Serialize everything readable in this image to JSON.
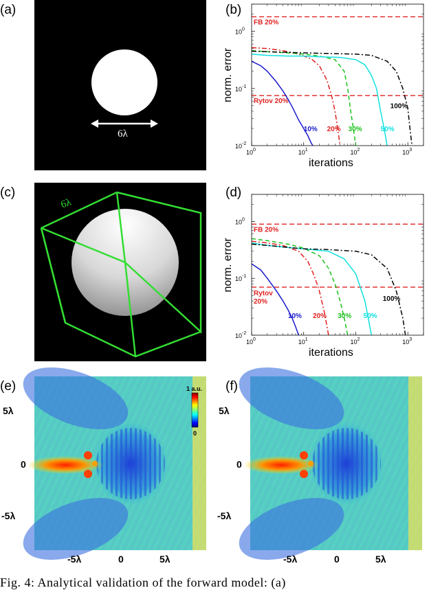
{
  "panels": {
    "a": {
      "label": "(a)",
      "dimension": "6λ"
    },
    "b": {
      "label": "(b)"
    },
    "c": {
      "label": "(c)",
      "dimension": "6λ"
    },
    "d": {
      "label": "(d)"
    },
    "e": {
      "label": "(e)",
      "colorbar_top": "1 a.u.",
      "colorbar_bottom": "0",
      "xticks": [
        "-5λ",
        "0",
        "5λ"
      ],
      "yticks": [
        "5λ",
        "0",
        "-5λ"
      ]
    },
    "f": {
      "label": "(f)",
      "xticks": [
        "-5λ",
        "0",
        "5λ"
      ],
      "yticks": [
        "5λ",
        "0",
        "-5λ"
      ]
    }
  },
  "colors": {
    "blue": "#1a1acc",
    "red": "#e02020",
    "green": "#18c018",
    "cyan": "#10e0e0",
    "black": "#000000",
    "cube": "#33dd33"
  },
  "chart_data": [
    {
      "id": "b",
      "type": "line",
      "xlabel": "iterations",
      "ylabel": "norm. error",
      "xscale": "log",
      "yscale": "log",
      "xlim": [
        1,
        2000
      ],
      "ylim": [
        0.01,
        3
      ],
      "xticks": [
        "10^0",
        "10^1",
        "10^2",
        "10^3"
      ],
      "yticks": [
        "10^-2",
        "10^-1",
        "10^0"
      ],
      "reference_lines": [
        {
          "label": "FB 20%",
          "y": 1.8,
          "color": "#e02020"
        },
        {
          "label": "Rytov 20%",
          "y": 0.075,
          "color": "#e02020"
        }
      ],
      "series": [
        {
          "name": "10%",
          "color": "#1a1acc",
          "dash": "solid",
          "x": [
            1,
            1.5,
            2,
            3,
            4,
            5,
            6,
            7,
            8,
            10,
            12,
            14,
            15
          ],
          "y": [
            0.3,
            0.25,
            0.2,
            0.13,
            0.09,
            0.065,
            0.048,
            0.036,
            0.028,
            0.02,
            0.015,
            0.011,
            0.01
          ],
          "label_pos": [
            10,
            0.018
          ]
        },
        {
          "name": "20%",
          "color": "#e02020",
          "dash": "dashdot",
          "x": [
            1,
            2,
            4,
            8,
            14,
            20,
            28,
            35,
            40,
            45,
            50
          ],
          "y": [
            0.52,
            0.5,
            0.46,
            0.4,
            0.33,
            0.25,
            0.14,
            0.07,
            0.04,
            0.02,
            0.01
          ],
          "label_pos": [
            28,
            0.018
          ]
        },
        {
          "name": "30%",
          "color": "#18c018",
          "dash": "dashed",
          "x": [
            1,
            2,
            5,
            10,
            20,
            40,
            60,
            70,
            80,
            90,
            100
          ],
          "y": [
            0.46,
            0.44,
            0.42,
            0.4,
            0.37,
            0.32,
            0.2,
            0.1,
            0.04,
            0.02,
            0.01
          ],
          "label_pos": [
            72,
            0.018
          ]
        },
        {
          "name": "50%",
          "color": "#10e0e0",
          "dash": "solid",
          "x": [
            1,
            2,
            5,
            10,
            20,
            50,
            100,
            150,
            200,
            250,
            300,
            350,
            400
          ],
          "y": [
            0.4,
            0.38,
            0.37,
            0.37,
            0.36,
            0.35,
            0.32,
            0.26,
            0.17,
            0.1,
            0.04,
            0.02,
            0.01
          ],
          "label_pos": [
            300,
            0.018
          ]
        },
        {
          "name": "100%",
          "color": "#000000",
          "dash": "dashdot",
          "x": [
            1,
            2,
            5,
            10,
            30,
            100,
            200,
            400,
            600,
            800,
            1000,
            1100,
            1200
          ],
          "y": [
            0.45,
            0.44,
            0.43,
            0.42,
            0.41,
            0.4,
            0.38,
            0.3,
            0.2,
            0.1,
            0.045,
            0.02,
            0.01
          ],
          "label_pos": [
            460,
            0.045
          ]
        }
      ]
    },
    {
      "id": "d",
      "type": "line",
      "xlabel": "iterations",
      "ylabel": "norm. error",
      "xscale": "log",
      "yscale": "log",
      "xlim": [
        1,
        2000
      ],
      "ylim": [
        0.01,
        3
      ],
      "xticks": [
        "10^0",
        "10^1",
        "10^2",
        "10^3"
      ],
      "yticks": [
        "10^-2",
        "10^-1",
        "10^0"
      ],
      "reference_lines": [
        {
          "label": "FB 20%",
          "y": 0.9,
          "color": "#e02020"
        },
        {
          "label": "Rytov 20%",
          "y": 0.07,
          "color": "#e02020"
        }
      ],
      "series": [
        {
          "name": "10%",
          "color": "#1a1acc",
          "dash": "solid",
          "x": [
            1,
            1.5,
            2,
            3,
            4,
            5,
            6,
            7,
            8
          ],
          "y": [
            0.18,
            0.14,
            0.1,
            0.06,
            0.04,
            0.028,
            0.02,
            0.014,
            0.01
          ],
          "label_pos": [
            5,
            0.02
          ]
        },
        {
          "name": "20%",
          "color": "#e02020",
          "dash": "dashdot",
          "x": [
            1,
            2,
            4,
            8,
            12,
            16,
            20,
            25,
            30
          ],
          "y": [
            0.45,
            0.42,
            0.38,
            0.3,
            0.2,
            0.11,
            0.06,
            0.025,
            0.01
          ],
          "label_pos": [
            15,
            0.02
          ]
        },
        {
          "name": "30%",
          "color": "#18c018",
          "dash": "dashed",
          "x": [
            1,
            2,
            5,
            10,
            20,
            30,
            40,
            50,
            60,
            70
          ],
          "y": [
            0.5,
            0.46,
            0.4,
            0.34,
            0.25,
            0.15,
            0.08,
            0.04,
            0.02,
            0.01
          ],
          "label_pos": [
            45,
            0.02
          ]
        },
        {
          "name": "50%",
          "color": "#10e0e0",
          "dash": "solid",
          "x": [
            1,
            2,
            5,
            10,
            30,
            60,
            100,
            150,
            200
          ],
          "y": [
            0.42,
            0.38,
            0.35,
            0.33,
            0.3,
            0.22,
            0.12,
            0.04,
            0.01
          ],
          "label_pos": [
            140,
            0.02
          ]
        },
        {
          "name": "100%",
          "color": "#000000",
          "dash": "dashdot",
          "x": [
            1,
            2,
            5,
            10,
            30,
            100,
            200,
            400,
            600,
            800,
            900
          ],
          "y": [
            0.4,
            0.38,
            0.35,
            0.33,
            0.32,
            0.3,
            0.26,
            0.15,
            0.06,
            0.02,
            0.01
          ],
          "label_pos": [
            330,
            0.04
          ]
        }
      ]
    }
  ],
  "caption": "Fig.  4:   Analytical  validation  of  the  forward  model:  (a)"
}
